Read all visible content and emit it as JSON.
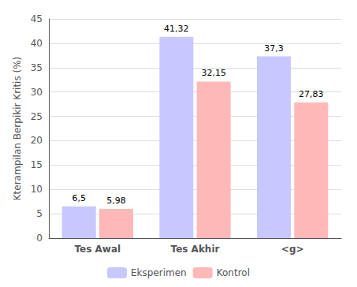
{
  "chart_data": {
    "type": "bar",
    "categories": [
      "Tes Awal",
      "Tes Akhir",
      "<g>"
    ],
    "series": [
      {
        "name": "Eksperimen",
        "color": "#c8c8ff",
        "values": [
          6.5,
          41.32,
          37.3
        ],
        "value_labels": [
          "6,5",
          "41,32",
          "37,3"
        ]
      },
      {
        "name": "Kontrol",
        "color": "#ffb8b8",
        "values": [
          5.98,
          32.15,
          27.83
        ],
        "value_labels": [
          "5,98",
          "32,15",
          "27,83"
        ]
      }
    ],
    "ylabel": "Kterampilan Berpikir Kritis (%)",
    "ylim": [
      0,
      45
    ],
    "yticks": [
      0,
      5,
      10,
      15,
      20,
      25,
      30,
      35,
      40,
      45
    ],
    "grid": true,
    "legend": "bottom",
    "data_labels": true
  }
}
